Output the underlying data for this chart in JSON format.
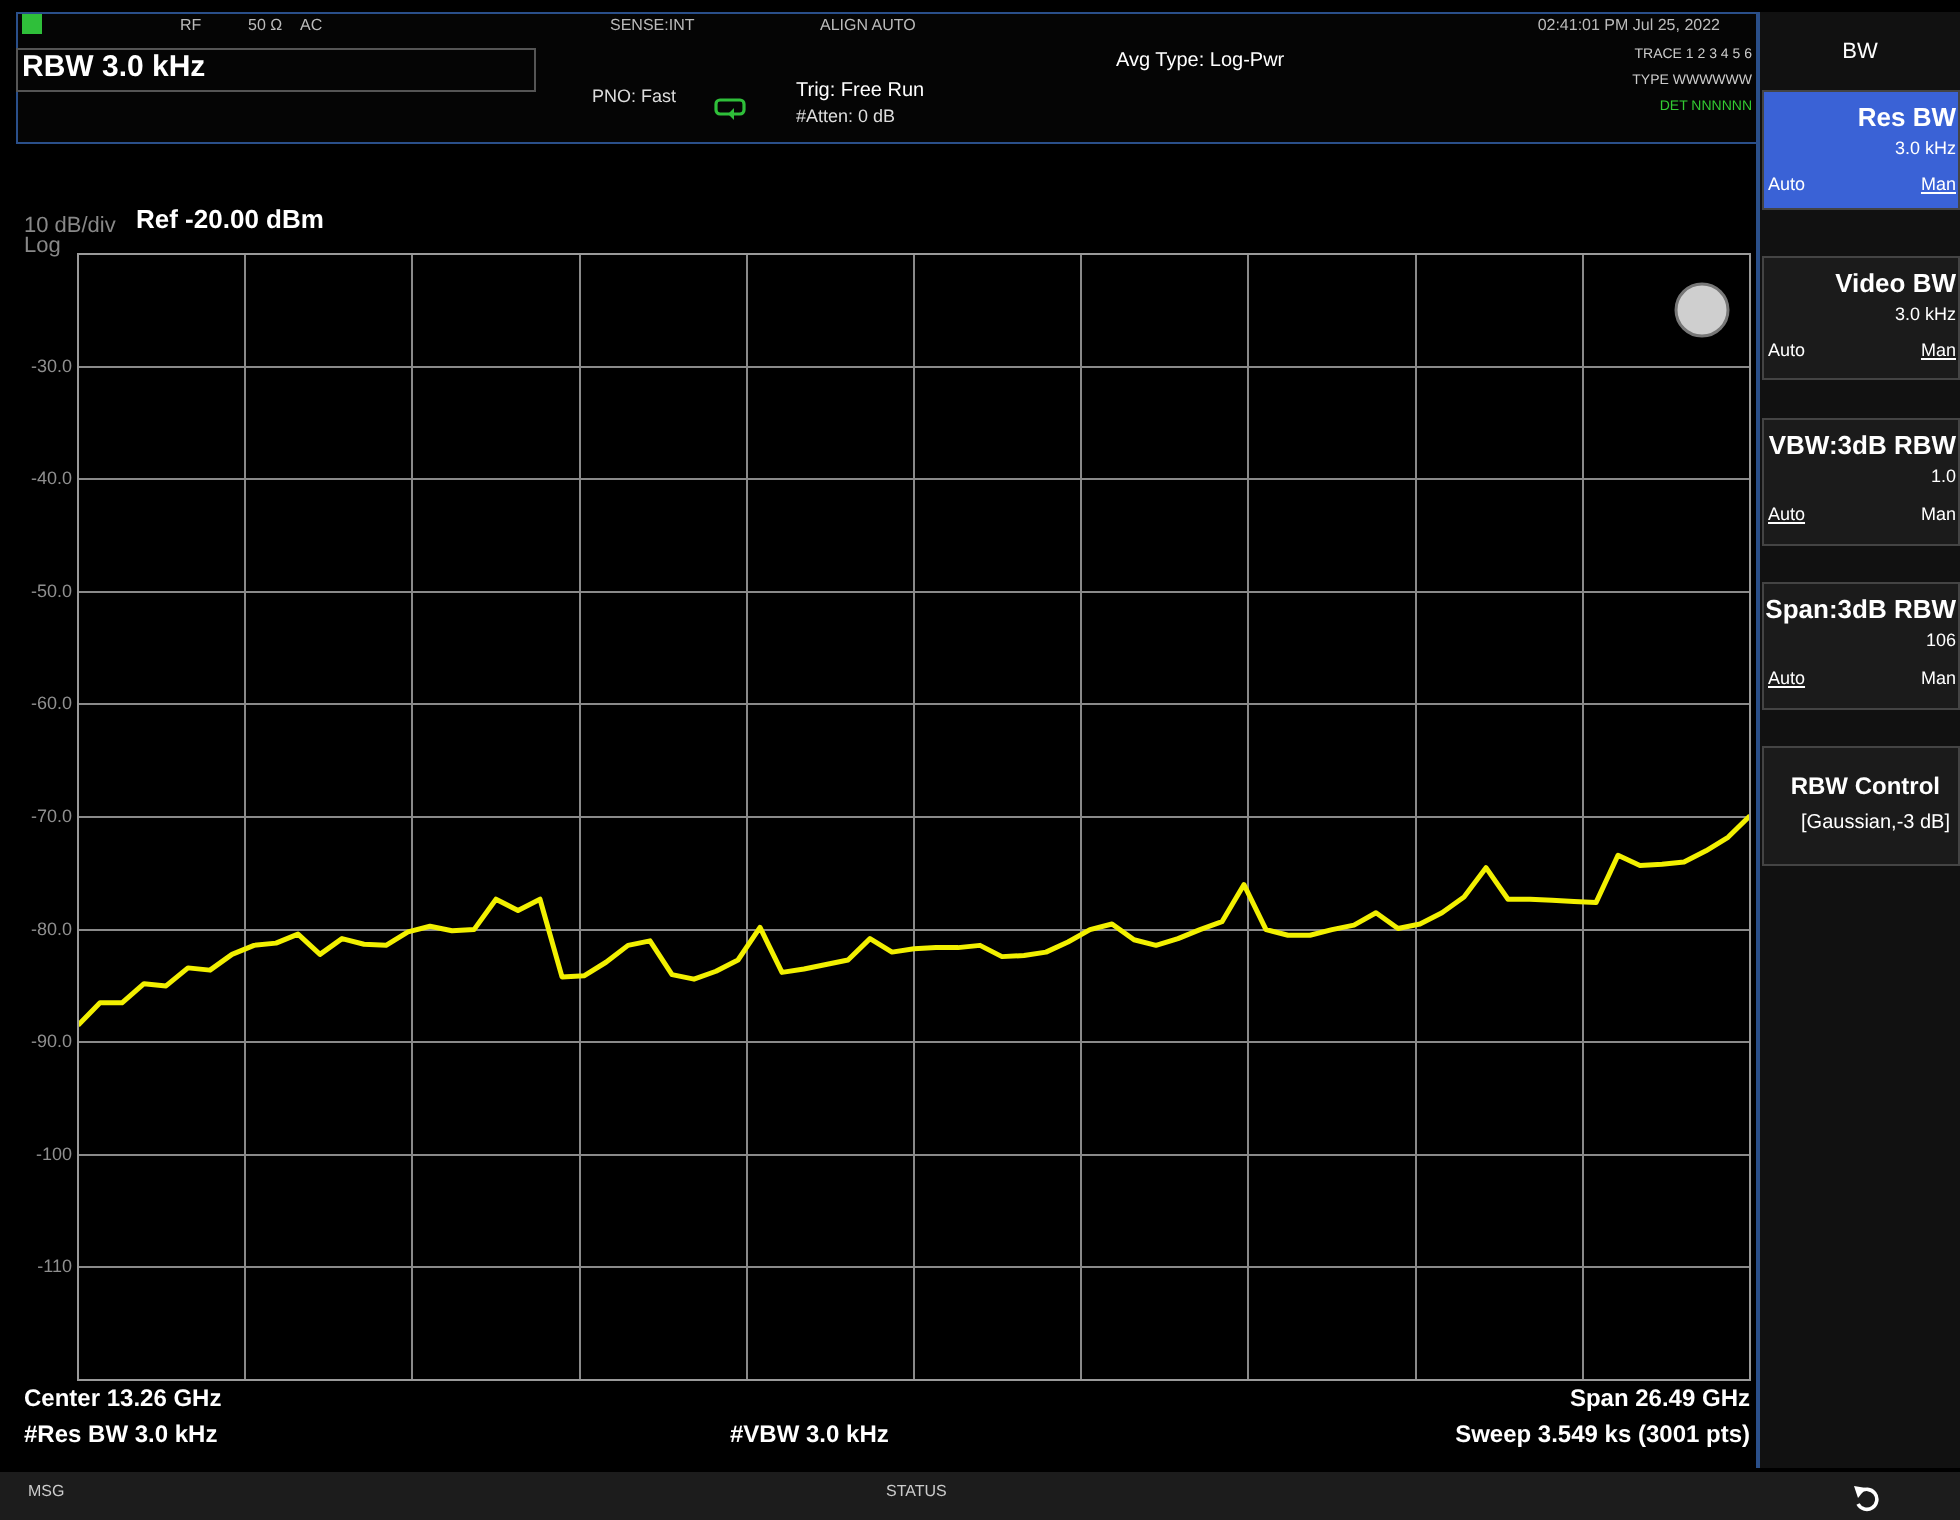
{
  "chart_data": {
    "type": "line",
    "title": "RBW 3.0 kHz",
    "categories": [
      null,
      null,
      null,
      null,
      null,
      null,
      null,
      null,
      null,
      null,
      null,
      null,
      null,
      null,
      null,
      null,
      null,
      null,
      null,
      null,
      null,
      null,
      null,
      null,
      null,
      null,
      null,
      null,
      null,
      null,
      null,
      null,
      null,
      null,
      null,
      null,
      null,
      null,
      null,
      null,
      null,
      null,
      null,
      null,
      null,
      null,
      null,
      null,
      null,
      null,
      null,
      null,
      null,
      null,
      null,
      null,
      null,
      null,
      null,
      null,
      null,
      null,
      null,
      null,
      null,
      null,
      null,
      null,
      null,
      null,
      null,
      null,
      null,
      null,
      null,
      null,
      null
    ],
    "series": [
      {
        "color": "#f2f000",
        "values": [
          -88.5,
          -86.5,
          -86.5,
          -84.8,
          -85.0,
          -83.4,
          -83.6,
          -82.2,
          -81.4,
          -81.2,
          -80.4,
          -82.2,
          -80.8,
          -81.3,
          -81.4,
          -80.2,
          -79.7,
          -80.1,
          -80.0,
          -77.3,
          -78.3,
          -77.3,
          -84.2,
          -84.1,
          -82.9,
          -81.4,
          -81.0,
          -84.0,
          -84.4,
          -83.7,
          -82.7,
          -79.8,
          -83.8,
          -83.5,
          -83.1,
          -82.7,
          -80.8,
          -82.0,
          -81.7,
          -81.6,
          -81.6,
          -81.4,
          -82.4,
          -82.3,
          -82.0,
          -81.1,
          -80.0,
          -79.5,
          -80.9,
          -81.4,
          -80.8,
          -80.0,
          -79.3,
          -76.0,
          -80.0,
          -80.5,
          -80.5,
          -80.0,
          -79.6,
          -78.5,
          -79.9,
          -79.5,
          -78.5,
          -77.1,
          -74.5,
          -77.3,
          -77.3,
          -77.4,
          -77.5,
          -77.6,
          -73.4,
          -74.3,
          -74.2,
          -74.0,
          -73.0,
          -71.8,
          -69.9
        ]
      }
    ],
    "ylim": [
      -120,
      -20
    ],
    "yticks": [
      {
        "value": -20,
        "label": null
      },
      {
        "value": -30,
        "label": "-30.0"
      },
      {
        "value": -40,
        "label": "-40.0"
      },
      {
        "value": -50,
        "label": "-50.0"
      },
      {
        "value": -60,
        "label": "-60.0"
      },
      {
        "value": -70,
        "label": "-70.0"
      },
      {
        "value": -80,
        "label": "-80.0"
      },
      {
        "value": -90,
        "label": "-90.0"
      },
      {
        "value": -100,
        "label": "-100"
      },
      {
        "value": -110,
        "label": "-110"
      },
      {
        "value": -120,
        "label": null
      }
    ],
    "tick_labels": "y",
    "grid": true,
    "legend": false,
    "marker": "none",
    "line_style": "solid",
    "annotations": [
      "RF",
      "50 Ω",
      "AC",
      "SENSE:INT",
      "ALIGN AUTO",
      "02:41:01 PM Jul 25, 2022",
      "PNO: Fast",
      "Trig: Free Run",
      "#Atten: 0 dB",
      "Avg Type: Log-Pwr",
      "TRACE 1 2 3 4 5 6",
      "TYPE WWWWWW",
      "DET NNNNNN",
      "10 dB/div",
      "Ref -20.00 dBm",
      "Log",
      "Center 13.26 GHz",
      "#Res BW 3.0 kHz",
      "#VBW 3.0 kHz",
      "Span 26.49 GHz",
      "Sweep  3.549 ks (3001 pts)",
      "MSG",
      "STATUS",
      "BW",
      "Res BW",
      "3.0 kHz",
      "Auto",
      "Man",
      "Video BW",
      "3.0 kHz",
      "Auto",
      "Man",
      "VBW:3dB RBW",
      "1.0",
      "Auto",
      "Man",
      "Span:3dB RBW",
      "106",
      "Auto",
      "Man",
      "RBW Control",
      "[Gaussian,-3 dB]"
    ]
  }
}
